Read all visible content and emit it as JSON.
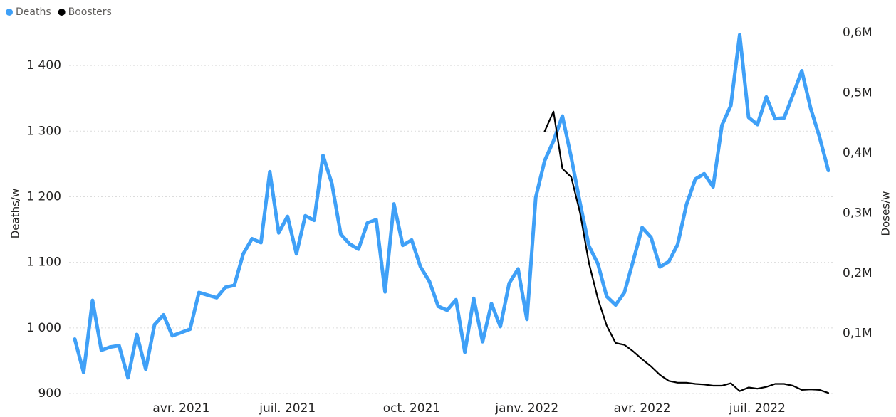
{
  "chart_data": {
    "type": "line",
    "categories": [
      null,
      null,
      null,
      null,
      null,
      null,
      null,
      null,
      null,
      null,
      null,
      null,
      "avr. 2021",
      null,
      null,
      null,
      null,
      null,
      null,
      null,
      null,
      null,
      null,
      null,
      "juil. 2021",
      null,
      null,
      null,
      null,
      null,
      null,
      null,
      null,
      null,
      null,
      null,
      null,
      null,
      "oct. 2021",
      null,
      null,
      null,
      null,
      null,
      null,
      null,
      null,
      null,
      null,
      null,
      null,
      "janv. 2022",
      null,
      null,
      null,
      null,
      null,
      null,
      null,
      null,
      null,
      null,
      null,
      null,
      "avr. 2022",
      null,
      null,
      null,
      null,
      null,
      null,
      null,
      null,
      null,
      null,
      null,
      null,
      "juil. 2022",
      null,
      null,
      null,
      null,
      null,
      null,
      null,
      null
    ],
    "series": [
      {
        "name": "Deaths",
        "color": "#3fa0f7",
        "values": [
          983,
          932,
          1042,
          966,
          971,
          973,
          924,
          990,
          937,
          1005,
          1020,
          988,
          993,
          998,
          1054,
          1050,
          1046,
          1062,
          1065,
          1113,
          1136,
          1130,
          1238,
          1145,
          1170,
          1113,
          1171,
          1164,
          1263,
          1220,
          1143,
          1128,
          1120,
          1160,
          1165,
          1055,
          1189,
          1126,
          1134,
          1093,
          1071,
          1033,
          1027,
          1043,
          963,
          1045,
          979,
          1037,
          1002,
          1068,
          1090,
          1013,
          1199,
          1255,
          1285,
          1323,
          1260,
          1190,
          1125,
          1098,
          1048,
          1035,
          1054,
          1103,
          1153,
          1138,
          1093,
          1101,
          1127,
          1188,
          1227,
          1235,
          1215,
          1309,
          1339,
          1447,
          1321,
          1310,
          1352,
          1319,
          1320,
          1355,
          1392,
          1335,
          1291,
          1240
        ]
      },
      {
        "name": "Boosters",
        "color": "#000000",
        "axis": "y2",
        "values": [
          null,
          null,
          null,
          null,
          null,
          null,
          null,
          null,
          null,
          null,
          null,
          null,
          null,
          null,
          null,
          null,
          null,
          null,
          null,
          null,
          null,
          null,
          null,
          null,
          null,
          null,
          null,
          null,
          null,
          null,
          null,
          null,
          null,
          null,
          null,
          null,
          null,
          null,
          null,
          null,
          null,
          null,
          null,
          null,
          null,
          null,
          null,
          null,
          null,
          null,
          null,
          null,
          null,
          436000,
          469000,
          374000,
          360000,
          300000,
          217000,
          158000,
          113000,
          84000,
          81000,
          70000,
          57000,
          45000,
          31000,
          21000,
          18000,
          18000,
          16000,
          15000,
          13000,
          13000,
          17000,
          4000,
          10000,
          8000,
          11000,
          16000,
          16000,
          13000,
          6000,
          7000,
          6000,
          1000
        ]
      }
    ],
    "y_label": "Deaths/w",
    "y2_label": "Doses/w",
    "ylim": [
      900,
      1450
    ],
    "yticks": [
      {
        "value": 900,
        "label": "900"
      },
      {
        "value": 1000,
        "label": "1 000"
      },
      {
        "value": 1100,
        "label": "1 100"
      },
      {
        "value": 1200,
        "label": "1 200"
      },
      {
        "value": 1300,
        "label": "1 300"
      },
      {
        "value": 1400,
        "label": "1 400"
      }
    ],
    "y2lim": [
      0,
      600000
    ],
    "y2ticks": [
      {
        "value": 100000,
        "label": "0,1M"
      },
      {
        "value": 200000,
        "label": "0,2M"
      },
      {
        "value": 300000,
        "label": "0,3M"
      },
      {
        "value": 400000,
        "label": "0,4M"
      },
      {
        "value": 500000,
        "label": "0,5M"
      },
      {
        "value": 600000,
        "label": "0,6M"
      }
    ],
    "grid": true,
    "legend": "top-left"
  }
}
